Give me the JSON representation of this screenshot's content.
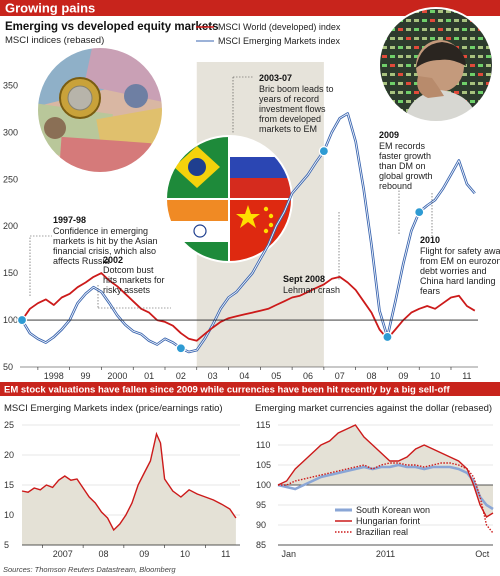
{
  "header": {
    "title": "Growing pains"
  },
  "main_chart": {
    "title": "Emerging vs developed equity markets",
    "subtitle": "MSCI indices (rebased)",
    "legend": [
      {
        "label": "MSCI World (developed) index",
        "color": "#cc1a1a"
      },
      {
        "label": "MSCI Emerging Markets index",
        "color": "#3b66b0"
      }
    ],
    "annotations": [
      {
        "heading": "1997-98",
        "lines": [
          "Confidence in emerging",
          "markets is hit by the Asian",
          "financial crisis, which also",
          "affects Russia"
        ]
      },
      {
        "heading": "2002",
        "lines": [
          "Dotcom bust",
          "hits markets for",
          "risky assets"
        ]
      },
      {
        "heading": "2003-07",
        "lines": [
          "Bric boom leads to",
          "years of record",
          "investment flows",
          "from developed",
          "markets to EM"
        ]
      },
      {
        "heading": "Sept 2008",
        "lines": [
          "Lehman crash"
        ]
      },
      {
        "heading": "2009",
        "lines": [
          "EM records",
          "faster growth",
          "than DM on",
          "global growth",
          "rebound"
        ]
      },
      {
        "heading": "2010",
        "lines": [
          "Flight for safety away",
          "from EM on eurozone",
          "debt worries and",
          "China hard landing",
          "fears"
        ]
      }
    ]
  },
  "band": {
    "title": "EM stock valuations have fallen since 2009 while currencies have been hit recently by a big sell-off"
  },
  "pe_chart": {
    "title": "MSCI Emerging Markets index (price/earnings ratio)"
  },
  "fx_chart": {
    "title": "Emerging market currencies against the dollar (rebased)",
    "legend": [
      {
        "label": "South Korean won",
        "color": "#8aa6d6",
        "style": "solid-thick"
      },
      {
        "label": "Hungarian forint",
        "color": "#cc1a1a",
        "style": "solid"
      },
      {
        "label": "Brazilian real",
        "color": "#cc1a1a",
        "style": "dotted"
      }
    ]
  },
  "source": "Sources: Thomson Reuters Datastream, Bloomberg",
  "chart_data": [
    {
      "type": "line",
      "title": "Emerging vs developed equity markets",
      "subtitle": "MSCI indices (rebased)",
      "x_tick_labels": [
        "1998",
        "99",
        "2000",
        "01",
        "02",
        "03",
        "04",
        "05",
        "06",
        "07",
        "08",
        "09",
        "10",
        "11"
      ],
      "xlim": [
        1997.5,
        2011.85
      ],
      "ylim": [
        50,
        360
      ],
      "y_ticks": [
        50,
        100,
        150,
        200,
        250,
        300,
        350
      ],
      "grid": false,
      "shaded_period": [
        2003.0,
        2007.0
      ],
      "legend_position": "top",
      "x": [
        1997.5,
        1997.75,
        1998.0,
        1998.25,
        1998.5,
        1998.75,
        1999.0,
        1999.25,
        1999.5,
        1999.75,
        2000.0,
        2000.25,
        2000.5,
        2000.75,
        2001.0,
        2001.25,
        2001.5,
        2001.75,
        2002.0,
        2002.25,
        2002.5,
        2002.75,
        2003.0,
        2003.25,
        2003.5,
        2003.75,
        2004.0,
        2004.25,
        2004.5,
        2004.75,
        2005.0,
        2005.25,
        2005.5,
        2005.75,
        2006.0,
        2006.25,
        2006.5,
        2006.75,
        2007.0,
        2007.25,
        2007.5,
        2007.75,
        2008.0,
        2008.25,
        2008.5,
        2008.75,
        2009.0,
        2009.25,
        2009.5,
        2009.75,
        2010.0,
        2010.25,
        2010.5,
        2010.75,
        2011.0,
        2011.25,
        2011.5,
        2011.75
      ],
      "series": [
        {
          "name": "MSCI World (developed) index",
          "color": "#cc1a1a",
          "values": [
            100,
            112,
            118,
            122,
            116,
            124,
            128,
            135,
            140,
            146,
            150,
            142,
            136,
            128,
            120,
            112,
            108,
            100,
            98,
            94,
            86,
            80,
            78,
            85,
            92,
            98,
            102,
            104,
            106,
            108,
            110,
            112,
            116,
            120,
            124,
            126,
            130,
            134,
            138,
            144,
            146,
            140,
            132,
            120,
            108,
            90,
            80,
            90,
            100,
            108,
            112,
            115,
            112,
            118,
            124,
            126,
            115,
            110
          ]
        },
        {
          "name": "MSCI Emerging Markets index",
          "color": "#3b66b0",
          "values": [
            100,
            86,
            80,
            76,
            82,
            90,
            100,
            118,
            128,
            135,
            130,
            118,
            105,
            95,
            88,
            85,
            78,
            74,
            80,
            76,
            70,
            66,
            68,
            80,
            95,
            112,
            124,
            130,
            140,
            150,
            165,
            180,
            200,
            215,
            235,
            245,
            255,
            268,
            280,
            300,
            315,
            320,
            290,
            240,
            180,
            110,
            82,
            120,
            160,
            195,
            215,
            222,
            228,
            240,
            255,
            270,
            245,
            235
          ]
        }
      ]
    },
    {
      "type": "area",
      "title": "MSCI Emerging Markets index (price/earnings ratio)",
      "x_tick_labels": [
        "2007",
        "08",
        "09",
        "10",
        "11"
      ],
      "xlim": [
        2006.5,
        2011.85
      ],
      "ylim": [
        5,
        25
      ],
      "y_ticks": [
        5,
        10,
        15,
        20,
        25
      ],
      "grid": true,
      "x": [
        2006.5,
        2006.65,
        2006.8,
        2006.95,
        2007.1,
        2007.25,
        2007.4,
        2007.55,
        2007.7,
        2007.85,
        2008.0,
        2008.15,
        2008.3,
        2008.45,
        2008.6,
        2008.75,
        2008.9,
        2009.05,
        2009.2,
        2009.35,
        2009.5,
        2009.65,
        2009.8,
        2009.9,
        2010.0,
        2010.2,
        2010.4,
        2010.6,
        2010.8,
        2011.0,
        2011.2,
        2011.4,
        2011.6,
        2011.75
      ],
      "values": [
        14,
        13.8,
        14.5,
        14.2,
        15,
        14.6,
        15.8,
        16.5,
        15.8,
        16,
        14.5,
        13,
        12,
        10.5,
        9.5,
        7.5,
        8.5,
        10,
        12,
        15,
        17,
        19,
        23.5,
        22,
        16,
        14,
        13,
        14.2,
        13.5,
        13,
        12.5,
        11.8,
        11,
        9.5
      ]
    },
    {
      "type": "line",
      "title": "Emerging market currencies against the dollar (rebased)",
      "x_tick_labels": [
        "Jan",
        "2011",
        "Oct"
      ],
      "xlim": [
        0,
        1
      ],
      "ylim": [
        85,
        115
      ],
      "y_ticks": [
        85,
        90,
        95,
        100,
        105,
        110,
        115
      ],
      "grid": true,
      "legend_position": "bottom-right",
      "x": [
        0,
        0.04,
        0.08,
        0.12,
        0.16,
        0.2,
        0.24,
        0.28,
        0.32,
        0.36,
        0.4,
        0.44,
        0.48,
        0.52,
        0.56,
        0.6,
        0.64,
        0.68,
        0.72,
        0.76,
        0.8,
        0.84,
        0.88,
        0.91,
        0.94,
        0.97,
        1.0
      ],
      "series": [
        {
          "name": "South Korean won",
          "color": "#8aa6d6",
          "values": [
            100,
            99.5,
            99,
            100,
            101,
            102,
            102.5,
            103,
            103.5,
            104,
            104.5,
            104,
            104.5,
            104.5,
            105,
            104.5,
            104.5,
            104,
            104.5,
            104.5,
            104.5,
            104,
            103,
            101,
            97,
            95,
            94
          ]
        },
        {
          "name": "Hungarian forint",
          "color": "#cc1a1a",
          "values": [
            100,
            101,
            104,
            106,
            108,
            110,
            111,
            113,
            114,
            115,
            112,
            110,
            108,
            106,
            106,
            107,
            109,
            110,
            109,
            108,
            107,
            106,
            104,
            100,
            95,
            92,
            93
          ]
        },
        {
          "name": "Brazilian real",
          "color": "#cc1a1a",
          "values": [
            100,
            100,
            101,
            101.5,
            102,
            102.5,
            103,
            103.5,
            104,
            104.5,
            105,
            104,
            105,
            105.5,
            105.5,
            105,
            105,
            104.5,
            105,
            105.5,
            105.5,
            105,
            104,
            102,
            97,
            90,
            88
          ]
        }
      ]
    }
  ]
}
